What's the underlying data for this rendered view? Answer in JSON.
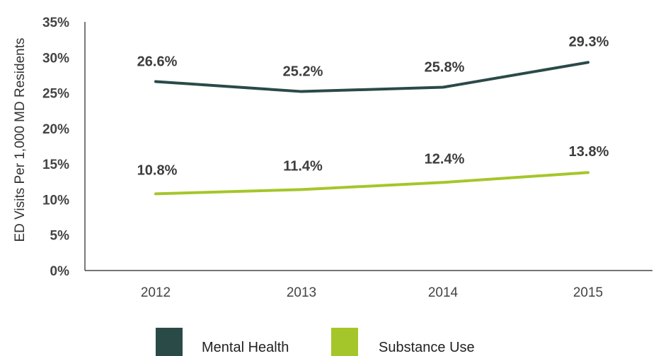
{
  "chart_data": {
    "type": "line",
    "ylabel": "ED Visits Per 1,000 MD Residents",
    "xlabel": "",
    "categories": [
      "2012",
      "2013",
      "2014",
      "2015"
    ],
    "ylim": [
      0,
      35
    ],
    "yticks": [
      "0%",
      "5%",
      "10%",
      "15%",
      "20%",
      "25%",
      "30%",
      "35%"
    ],
    "series": [
      {
        "name": "Mental Health",
        "color": "#2a4a48",
        "values": [
          26.6,
          25.2,
          25.8,
          29.3
        ],
        "labels": [
          "26.6%",
          "25.2%",
          "25.8%",
          "29.3%"
        ]
      },
      {
        "name": "Substance Use",
        "color": "#a5c62a",
        "values": [
          10.8,
          11.4,
          12.4,
          13.8
        ],
        "labels": [
          "10.8%",
          "11.4%",
          "12.4%",
          "13.8%"
        ]
      }
    ],
    "grid": false,
    "legend": "bottom"
  }
}
